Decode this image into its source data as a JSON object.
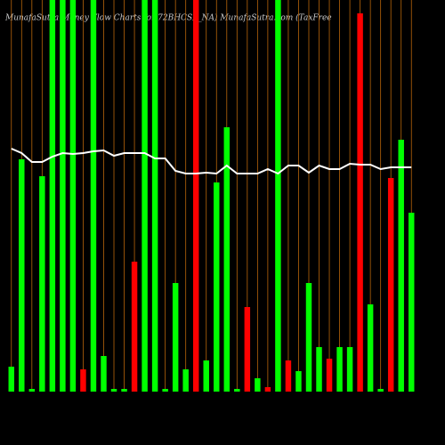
{
  "chart_data": {
    "type": "bar",
    "title": "MunafaSutra Money Flow Charts for 72BHCSL_NA) MunafaSutra.com (TaxFree",
    "ylim": [
      0,
      440
    ],
    "grid": true,
    "grid_color": "#b8650a",
    "series": [
      {
        "type": "bar",
        "colors": [
          "#00ff00",
          "#00ff00",
          "#00ff00",
          "#00ff00",
          "#00ff00",
          "#00ff00",
          "#00ff00",
          "#ff0000",
          "#00ff00",
          "#00ff00",
          "#00ff00",
          "#00ff00",
          "#ff0000",
          "#00ff00",
          "#00ff00",
          "#00ff00",
          "#00ff00",
          "#00ff00",
          "#ff0000",
          "#00ff00",
          "#00ff00",
          "#00ff00",
          "#00ff00",
          "#ff0000",
          "#00ff00",
          "#ff0000",
          "#00ff00",
          "#ff0000",
          "#00ff00",
          "#00ff00",
          "#00ff00",
          "#ff0000",
          "#00ff00",
          "#00ff00",
          "#ff0000",
          "#00ff00",
          "#00ff00",
          "#ff0000",
          "#00ff00",
          "#00ff00"
        ],
        "values": [
          28,
          261,
          3,
          242,
          440,
          440,
          440,
          25,
          440,
          40,
          3,
          3,
          146,
          440,
          440,
          3,
          122,
          25,
          440,
          35,
          235,
          297,
          3,
          95,
          15,
          5,
          440,
          35,
          23,
          122,
          50,
          37,
          50,
          50,
          425,
          98,
          3,
          240,
          283,
          201
        ]
      },
      {
        "type": "line",
        "color": "#ffffff",
        "values": [
          273,
          268,
          258,
          258,
          264,
          268,
          267,
          268,
          270,
          271,
          265,
          268,
          268,
          268,
          262,
          262,
          248,
          245,
          245,
          246,
          245,
          254,
          245,
          245,
          245,
          250,
          245,
          254,
          254,
          246,
          254,
          250,
          250,
          256,
          255,
          255,
          250,
          252,
          252,
          252
        ]
      }
    ]
  }
}
